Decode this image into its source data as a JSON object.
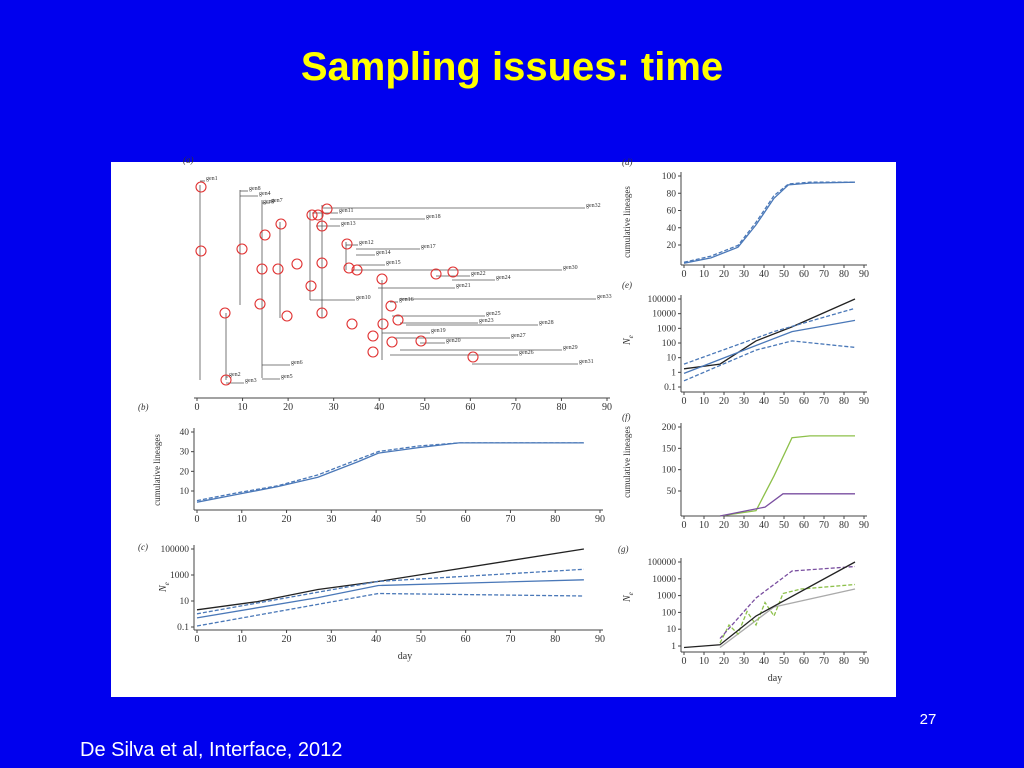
{
  "slide": {
    "title": "Sampling issues: time",
    "citation": "De Silva et al, Interface, 2012",
    "page_number": "27"
  },
  "figure": {
    "panels": [
      {
        "label": "(a)",
        "xticks": [
          "0",
          "10",
          "20",
          "30",
          "40",
          "50",
          "60",
          "70",
          "80",
          "90"
        ],
        "nodes": [
          "gen1",
          "gen2",
          "gen3",
          "gen4",
          "gen5",
          "gen6",
          "gen7",
          "gen11",
          "gen13",
          "gen18",
          "gen32",
          "gen12",
          "gen17",
          "gen14",
          "gen15",
          "gen30",
          "gen22",
          "gen24",
          "gen21",
          "gen10",
          "gen33",
          "gen16",
          "gen25",
          "gen23",
          "gen28",
          "gen19",
          "gen27",
          "gen20",
          "gen29",
          "gen26",
          "gen31",
          "gen8",
          "gen9"
        ]
      },
      {
        "label": "(b)",
        "ylabel": "cumulative lineages",
        "xticks": [
          "0",
          "10",
          "20",
          "30",
          "40",
          "50",
          "60",
          "70",
          "80",
          "90"
        ],
        "yticks": [
          "10",
          "20",
          "30",
          "40"
        ]
      },
      {
        "label": "(c)",
        "ylabel": {
          "main": "N",
          "sub": "e"
        },
        "xlabel": "day",
        "xticks": [
          "0",
          "10",
          "20",
          "30",
          "40",
          "50",
          "60",
          "70",
          "80",
          "90"
        ],
        "yticks": [
          "0.1",
          "10",
          "1000",
          "100000"
        ]
      },
      {
        "label": "(d)",
        "ylabel": "cumulative lineages",
        "xticks": [
          "0",
          "10",
          "20",
          "30",
          "40",
          "50",
          "60",
          "70",
          "80",
          "90"
        ],
        "yticks": [
          "20",
          "40",
          "60",
          "80",
          "100"
        ]
      },
      {
        "label": "(e)",
        "ylabel": {
          "main": "N",
          "sub": "e"
        },
        "xticks": [
          "0",
          "10",
          "20",
          "30",
          "40",
          "50",
          "60",
          "70",
          "80",
          "90"
        ],
        "yticks": [
          "0.1",
          "1",
          "10",
          "100",
          "1000",
          "10000",
          "100000"
        ]
      },
      {
        "label": "(f)",
        "ylabel": "cumulative lineages",
        "xticks": [
          "0",
          "10",
          "20",
          "30",
          "40",
          "50",
          "60",
          "70",
          "80",
          "90"
        ],
        "yticks": [
          "50",
          "100",
          "150",
          "200"
        ]
      },
      {
        "label": "(g)",
        "ylabel": {
          "main": "N",
          "sub": "e"
        },
        "xlabel": "day",
        "xticks": [
          "0",
          "10",
          "20",
          "30",
          "40",
          "50",
          "60",
          "70",
          "80",
          "90"
        ],
        "yticks": [
          "1",
          "10",
          "100",
          "1000",
          "10000",
          "100000"
        ]
      }
    ]
  }
}
